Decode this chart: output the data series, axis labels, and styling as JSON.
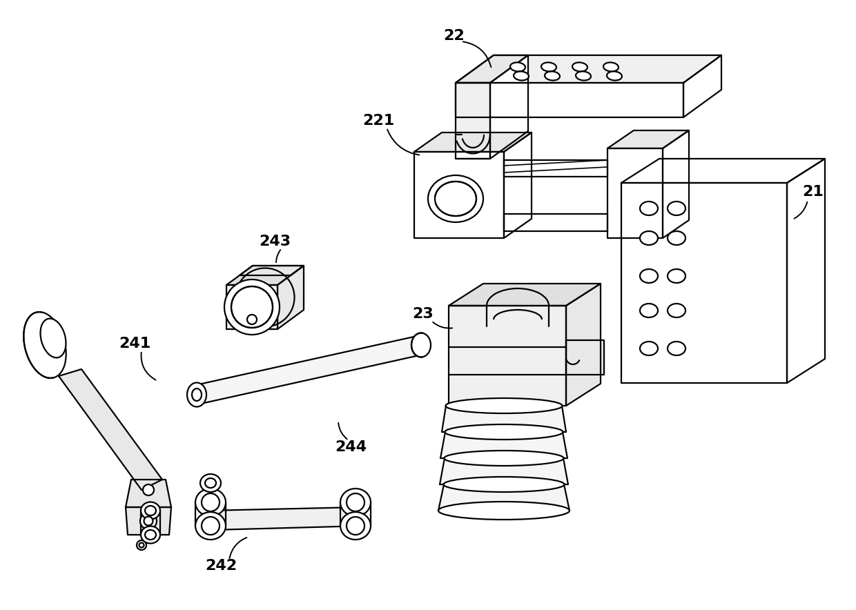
{
  "bg": "#ffffff",
  "lc": "#000000",
  "lw": 1.6,
  "fw": 12.4,
  "fh": 8.84,
  "dpi": 100
}
